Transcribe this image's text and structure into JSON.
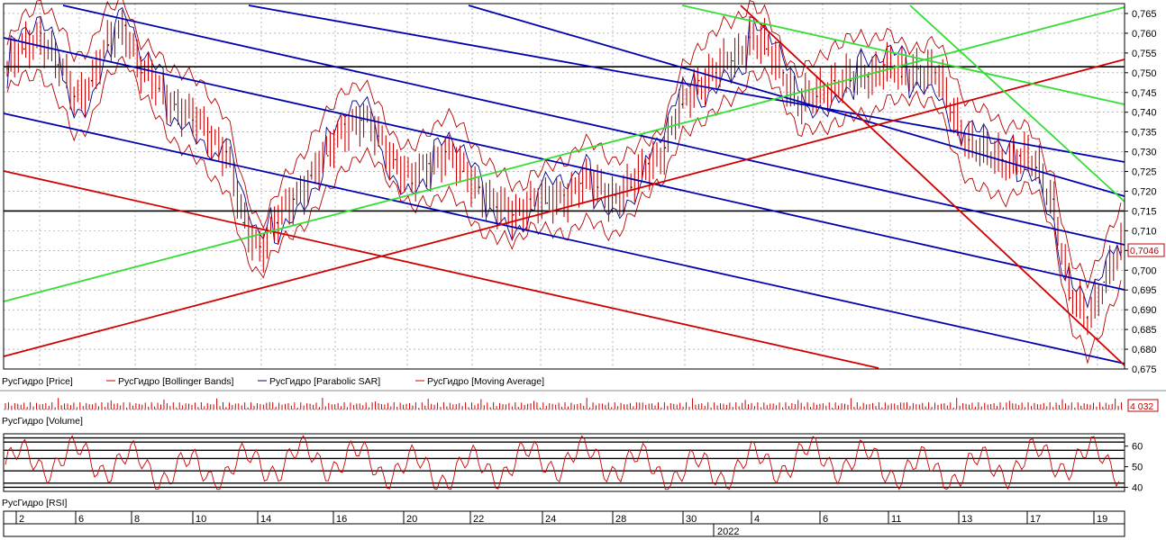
{
  "chart_data": [
    {
      "type": "line",
      "title": "",
      "ylim": [
        0.675,
        0.7675
      ],
      "y_ticks": [
        "0,765",
        "0,760",
        "0,755",
        "0,750",
        "0,745",
        "0,740",
        "0,735",
        "0,730",
        "0,725",
        "0,720",
        "0,715",
        "0,710",
        "0,705",
        "0,700",
        "0,695",
        "0,690",
        "0,685",
        "0,680",
        "0,675"
      ],
      "last_value_label": "0,7046",
      "grid": true,
      "legend_position": "bottom-left",
      "series": [
        {
          "name": "РусГидро [Price]",
          "color": "#000000",
          "values": [
            0.751,
            0.756,
            0.76,
            0.752,
            0.744,
            0.748,
            0.757,
            0.762,
            0.75,
            0.746,
            0.742,
            0.738,
            0.735,
            0.73,
            0.712,
            0.706,
            0.712,
            0.718,
            0.724,
            0.729,
            0.737,
            0.738,
            0.734,
            0.728,
            0.722,
            0.727,
            0.73,
            0.725,
            0.721,
            0.716,
            0.714,
            0.718,
            0.717,
            0.719,
            0.722,
            0.721,
            0.719,
            0.721,
            0.727,
            0.731,
            0.742,
            0.748,
            0.75,
            0.753,
            0.759,
            0.756,
            0.75,
            0.742,
            0.744,
            0.748,
            0.748,
            0.749,
            0.752,
            0.749,
            0.751,
            0.75,
            0.74,
            0.733,
            0.729,
            0.728,
            0.729,
            0.726,
            0.718,
            0.693,
            0.688,
            0.697,
            0.7046
          ]
        },
        {
          "name": "РусГидро [Bollinger Bands]",
          "color": "#b80000",
          "values": []
        },
        {
          "name": "РусГидро [Parabolic SAR]",
          "color": "#00008b",
          "values": []
        },
        {
          "name": "РусГидро [Moving Average]",
          "color": "#cc0000",
          "values": []
        }
      ],
      "horizontal_levels": [
        0.7515,
        0.715
      ]
    },
    {
      "type": "bar",
      "title": "",
      "series": [
        {
          "name": "РусГидро [Volume]",
          "color": "#cc0000",
          "values": []
        }
      ],
      "last_value_label": "4 032"
    },
    {
      "type": "line",
      "title": "",
      "ylim": [
        38,
        66
      ],
      "y_ticks": [
        "60",
        "50",
        "40"
      ],
      "series": [
        {
          "name": "РусГидро [RSI]",
          "color": "#cc0000",
          "values": []
        }
      ]
    }
  ],
  "x_axis": {
    "ticks": [
      "2",
      "6",
      "8",
      "10",
      "14",
      "16",
      "20",
      "22",
      "24",
      "28",
      "30",
      "4",
      "6",
      "11",
      "13",
      "17",
      "19"
    ],
    "year_label": "2022"
  },
  "colors": {
    "price": "#000000",
    "bollinger": "#b80000",
    "sar": "#00008b",
    "ma": "#cc0000",
    "trend_blue": "#0000b0",
    "trend_red": "#d00000",
    "trend_green": "#33dd33",
    "grid": "#8c8c8c"
  }
}
